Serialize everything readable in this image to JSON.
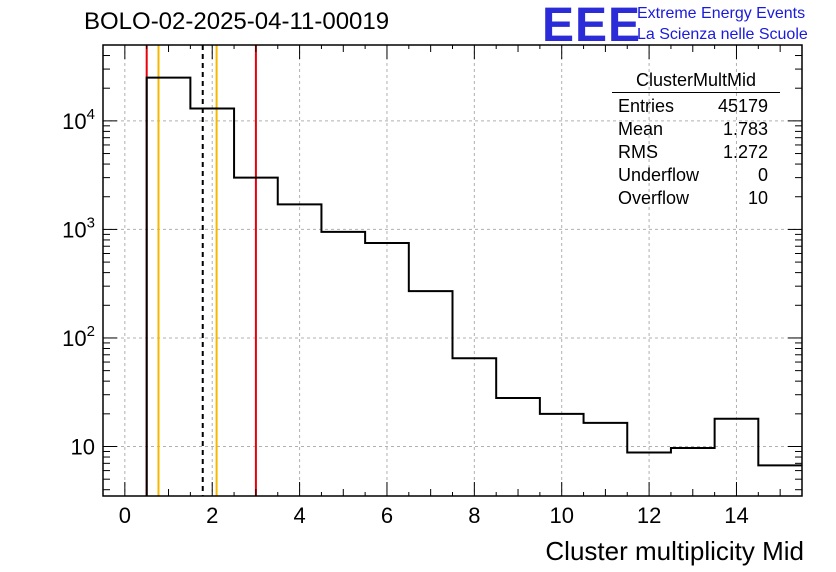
{
  "title": "BOLO-02-2025-04-11-00019",
  "logo": {
    "letters": "EEE",
    "line1": "Extreme Energy Events",
    "line2": "La Scienza nelle Scuole"
  },
  "stats": {
    "name": "ClusterMultMid",
    "rows": [
      {
        "label": "Entries",
        "value": "45179"
      },
      {
        "label": "Mean",
        "value": "1.783"
      },
      {
        "label": "RMS",
        "value": "1.272"
      },
      {
        "label": "Underflow",
        "value": "0"
      },
      {
        "label": "Overflow",
        "value": "10"
      }
    ]
  },
  "chart_data": {
    "type": "histogram",
    "xlabel": "Cluster multiplicity Mid",
    "ylabel": "",
    "xlim": [
      -0.5,
      15.5
    ],
    "ylim": [
      3.5,
      50000
    ],
    "yscale": "log",
    "grid": true,
    "x_ticks": [
      0,
      2,
      4,
      6,
      8,
      10,
      12,
      14
    ],
    "y_ticks": [
      {
        "value": 10,
        "label": "10"
      },
      {
        "value": 100,
        "label": "10",
        "exp": "2"
      },
      {
        "value": 1000,
        "label": "10",
        "exp": "3"
      },
      {
        "value": 10000,
        "label": "10",
        "exp": "4"
      }
    ],
    "bin_edges": [
      0.5,
      1.5,
      2.5,
      3.5,
      4.5,
      5.5,
      6.5,
      7.5,
      8.5,
      9.5,
      10.5,
      11.5,
      12.5,
      13.5,
      14.5,
      15.5
    ],
    "values": [
      25000,
      13000,
      3000,
      1700,
      950,
      750,
      270,
      65,
      28,
      20,
      16.5,
      8.8,
      9.7,
      18,
      6.7
    ],
    "vertical_lines": [
      {
        "x": 0.5,
        "color": "#e8000b",
        "style": "solid"
      },
      {
        "x": 0.77,
        "color": "#f5b800",
        "style": "solid"
      },
      {
        "x": 1.783,
        "color": "#000000",
        "style": "dashed"
      },
      {
        "x": 2.1,
        "color": "#f5b800",
        "style": "solid"
      },
      {
        "x": 3.0,
        "color": "#e8000b",
        "style": "solid"
      }
    ]
  }
}
